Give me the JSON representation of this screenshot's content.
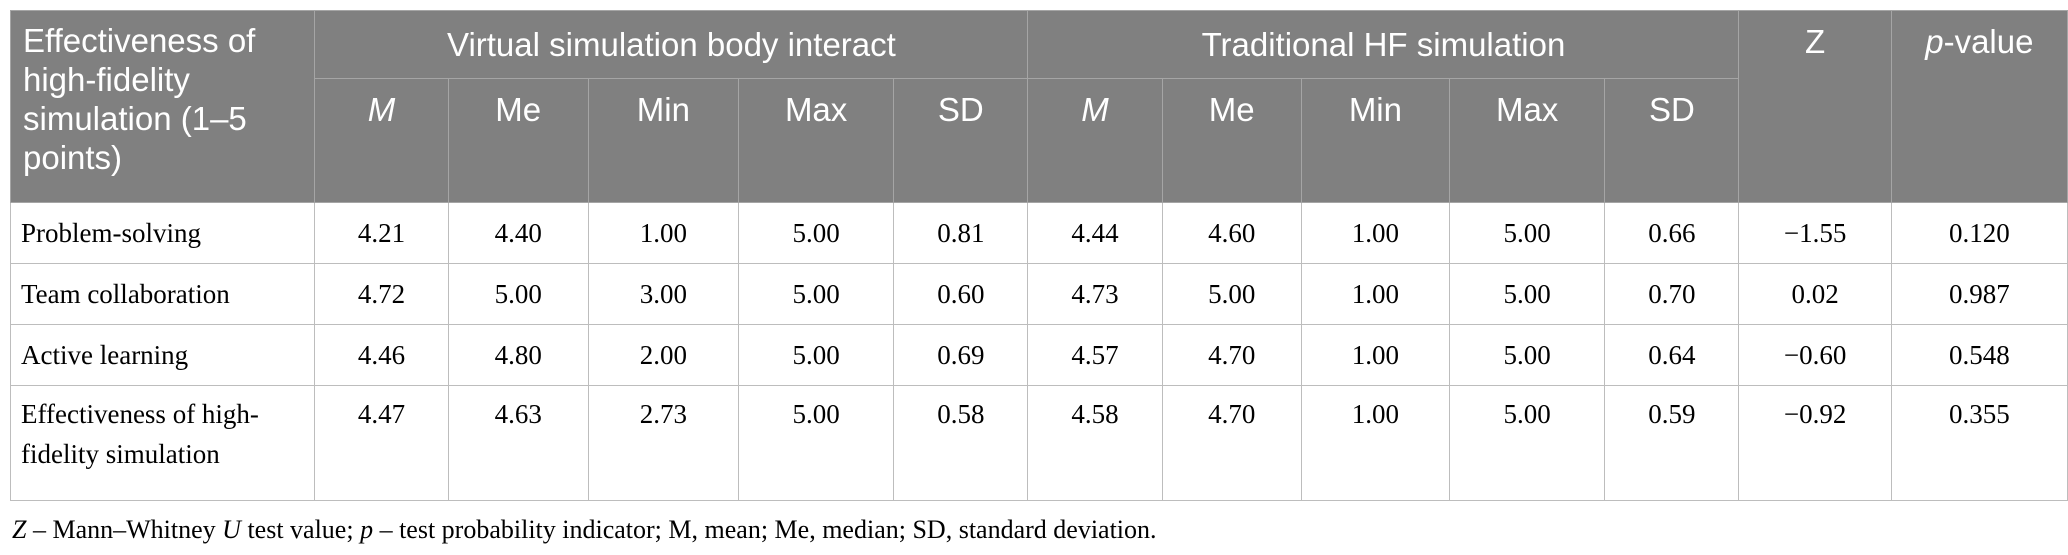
{
  "table": {
    "stub_header": "Effectiveness of high-fidelity simulation (1–5 points)",
    "group_headers": [
      "Virtual simulation body interact",
      "Traditional HF simulation"
    ],
    "z_header": "Z",
    "p_header_prefix": "p",
    "p_header_suffix": "-value",
    "group1_subheaders": [
      "M",
      "Me",
      "Min",
      "Max",
      "SD"
    ],
    "group2_subheaders": [
      "M",
      "Me",
      "Min",
      "Max",
      "SD"
    ],
    "rows": [
      {
        "label": "Problem-solving",
        "cells": [
          "4.21",
          "4.40",
          "1.00",
          "5.00",
          "0.81",
          "4.44",
          "4.60",
          "1.00",
          "5.00",
          "0.66",
          "−1.55",
          "0.120"
        ]
      },
      {
        "label": "Team collaboration",
        "cells": [
          "4.72",
          "5.00",
          "3.00",
          "5.00",
          "0.60",
          "4.73",
          "5.00",
          "1.00",
          "5.00",
          "0.70",
          "0.02",
          "0.987"
        ]
      },
      {
        "label": "Active learning",
        "cells": [
          "4.46",
          "4.80",
          "2.00",
          "5.00",
          "0.69",
          "4.57",
          "4.70",
          "1.00",
          "5.00",
          "0.64",
          "−0.60",
          "0.548"
        ]
      },
      {
        "label": "Effectiveness of high-fidelity simulation",
        "cells": [
          "4.47",
          "4.63",
          "2.73",
          "5.00",
          "0.58",
          "4.58",
          "4.70",
          "1.00",
          "5.00",
          "0.59",
          "−0.92",
          "0.355"
        ]
      }
    ]
  },
  "footnote": {
    "z_symbol": "Z",
    "part1": " – Mann–Whitney ",
    "u_symbol": "U",
    "part2": " test value; ",
    "p_symbol": "p",
    "part3": " – test probability indicator; M, mean; Me, median; SD, standard deviation."
  }
}
